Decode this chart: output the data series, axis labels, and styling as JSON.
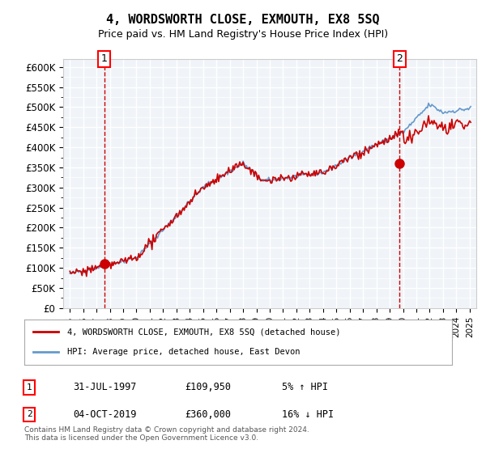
{
  "title": "4, WORDSWORTH CLOSE, EXMOUTH, EX8 5SQ",
  "subtitle": "Price paid vs. HM Land Registry's House Price Index (HPI)",
  "property_label": "4, WORDSWORTH CLOSE, EXMOUTH, EX8 5SQ (detached house)",
  "hpi_label": "HPI: Average price, detached house, East Devon",
  "transaction1": {
    "num": 1,
    "date": "31-JUL-1997",
    "price": "£109,950",
    "change": "5% ↑ HPI"
  },
  "transaction2": {
    "num": 2,
    "date": "04-OCT-2019",
    "price": "£360,000",
    "change": "16% ↓ HPI"
  },
  "t1_year": 1997.58,
  "t1_price": 109950,
  "t2_year": 2019.75,
  "t2_price": 360000,
  "property_color": "#cc0000",
  "hpi_color": "#6699cc",
  "background_color": "#f0f4f8",
  "grid_color": "#ffffff",
  "ylim": [
    0,
    620000
  ],
  "xlim_start": 1994.5,
  "xlim_end": 2025.5,
  "footer": "Contains HM Land Registry data © Crown copyright and database right 2024.\nThis data is licensed under the Open Government Licence v3.0.",
  "yticks": [
    0,
    50000,
    100000,
    150000,
    200000,
    250000,
    300000,
    350000,
    400000,
    450000,
    500000,
    550000,
    600000
  ],
  "ytick_labels": [
    "£0",
    "£50K",
    "£100K",
    "£150K",
    "£200K",
    "£250K",
    "£300K",
    "£350K",
    "£400K",
    "£450K",
    "£500K",
    "£550K",
    "£600K"
  ]
}
